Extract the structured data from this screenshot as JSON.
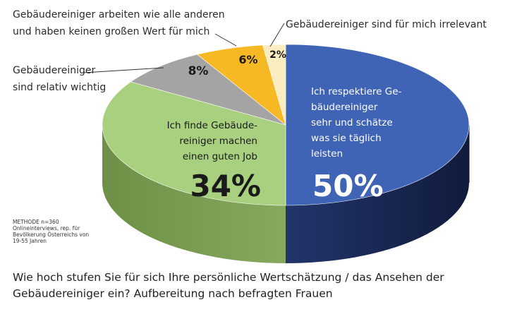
{
  "chart_data": {
    "type": "pie",
    "title": "",
    "slices": [
      {
        "name": "Ich respektiere Gebäudereiniger sehr und schätze was sie täglich leisten",
        "value": 50,
        "label": "50%",
        "color": "#3f63b5",
        "lines": [
          "Ich respektiere Ge-",
          "bäudereiniger",
          "sehr und schätze",
          "was sie täglich",
          "leisten"
        ]
      },
      {
        "name": "Ich finde Gebäudereiniger machen einen guten Job",
        "value": 34,
        "label": "34%",
        "color": "#a8d07e",
        "lines": [
          "Ich finde Gebäude-",
          "reiniger machen",
          "einen guten Job"
        ]
      },
      {
        "name": "Gebäudereiniger sind relativ wichtig",
        "value": 8,
        "label": "8%",
        "color": "#a4a4a4",
        "lines": [
          "Gebäudereiniger",
          "sind relativ wichtig"
        ]
      },
      {
        "name": "Gebäudereiniger arbeiten wie alle anderen und haben keinen großen Wert für mich",
        "value": 6,
        "label": "6%",
        "color": "#f6b923",
        "lines": [
          "Gebäudereiniger arbeiten wie alle anderen",
          "und haben keinen großen Wert für mich"
        ]
      },
      {
        "name": "Gebäudereiniger sind für mich irrelevant",
        "value": 2,
        "label": "2%",
        "color": "#fbedc0",
        "lines": [
          "Gebäudereiniger sind für mich irrelevant"
        ]
      }
    ]
  },
  "method_note": "METHODE n=360 Onlineinterviews, rep. für Bevölkerung Österreichs von 19-55 Jahren",
  "question": "Wie hoch stufen Sie für sich Ihre persönliche Wertschätzung / das Ansehen der Gebäudereiniger ein? Aufbereitung nach befragten Frauen"
}
